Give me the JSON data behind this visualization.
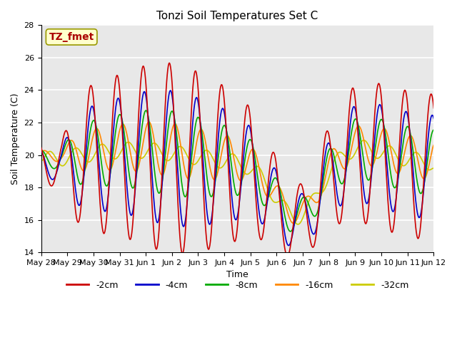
{
  "title": "Tonzi Soil Temperatures Set C",
  "xlabel": "Time",
  "ylabel": "Soil Temperature (C)",
  "ylim": [
    14,
    28
  ],
  "yticks": [
    14,
    16,
    18,
    20,
    22,
    24,
    26,
    28
  ],
  "background_color": "#dcdcdc",
  "plot_bg": "#e8e8e8",
  "colors": {
    "-2cm": "#cc0000",
    "-4cm": "#0000cc",
    "-8cm": "#00aa00",
    "-16cm": "#ff8800",
    "-32cm": "#cccc00"
  },
  "annotation_text": "TZ_fmet",
  "annotation_color": "#aa0000",
  "annotation_bg": "#ffffcc",
  "annotation_border": "#999900",
  "x_tick_labels": [
    "May 28",
    "May 29",
    "May 30",
    "May 31",
    "Jun 1",
    "Jun 2",
    "Jun 3",
    "Jun 4",
    "Jun 5",
    "Jun 6",
    "Jun 7",
    "Jun 8",
    "Jun 9",
    "Jun 10",
    "Jun 11",
    "Jun 12"
  ],
  "linewidth": 1.2
}
